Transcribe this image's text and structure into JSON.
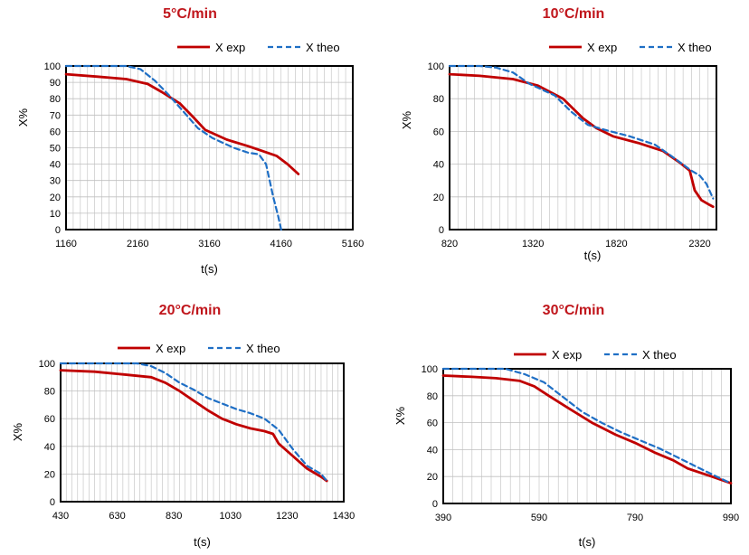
{
  "colors": {
    "exp": "#c00000",
    "theo": "#1f6fc5",
    "title": "#c0161c",
    "grid": "#bfbfbf"
  },
  "chart_data": [
    {
      "type": "line",
      "title": "5°C/min",
      "xlabel": "t(s)",
      "ylabel": "X%",
      "xlim": [
        1160,
        5160
      ],
      "ylim": [
        0,
        100
      ],
      "xticks": [
        "1160",
        "2160",
        "3160",
        "4160",
        "5160"
      ],
      "yticks": [
        "0",
        "10",
        "20",
        "30",
        "40",
        "50",
        "60",
        "70",
        "80",
        "90",
        "100"
      ],
      "grid": true,
      "series": [
        {
          "name": "X exp",
          "style": "solid",
          "x": [
            1160,
            1600,
            2000,
            2300,
            2500,
            2750,
            2950,
            3100,
            3400,
            3700,
            3900,
            4100,
            4250,
            4400
          ],
          "y": [
            95,
            93.5,
            92,
            89,
            84,
            77,
            68,
            61,
            55,
            51,
            48,
            45,
            40,
            34
          ]
        },
        {
          "name": "X theo",
          "style": "dashed",
          "x": [
            1160,
            1600,
            2000,
            2200,
            2400,
            2600,
            2800,
            3000,
            3200,
            3500,
            3700,
            3850,
            3950,
            4000,
            4050,
            4120,
            4160
          ],
          "y": [
            100,
            100,
            100,
            98,
            91,
            82,
            72,
            62,
            56,
            50,
            47,
            46,
            40,
            30,
            20,
            8,
            0
          ]
        }
      ]
    },
    {
      "type": "line",
      "title": "10°C/min",
      "xlabel": "t(s)",
      "ylabel": "X%",
      "xlim": [
        820,
        2420
      ],
      "ylim": [
        0,
        100
      ],
      "xticks": [
        "820",
        "1320",
        "1820",
        "2320"
      ],
      "yticks": [
        "0",
        "20",
        "40",
        "60",
        "80",
        "100"
      ],
      "grid": true,
      "series": [
        {
          "name": "X exp",
          "style": "solid",
          "x": [
            820,
            1000,
            1200,
            1350,
            1500,
            1620,
            1700,
            1800,
            1950,
            2100,
            2200,
            2260,
            2290,
            2330,
            2380,
            2400
          ],
          "y": [
            95,
            94,
            92,
            88,
            80,
            68,
            62,
            57,
            53,
            48,
            41,
            36,
            24,
            18,
            15,
            14
          ]
        },
        {
          "name": "X theo",
          "style": "dashed",
          "x": [
            820,
            1000,
            1100,
            1200,
            1300,
            1450,
            1550,
            1650,
            1750,
            1900,
            2050,
            2150,
            2270,
            2320,
            2360,
            2400
          ],
          "y": [
            100,
            100,
            99,
            96,
            89,
            82,
            72,
            64,
            61,
            57,
            52,
            45,
            36,
            33,
            28,
            19
          ]
        }
      ]
    },
    {
      "type": "line",
      "title": "20°C/min",
      "xlabel": "t(s)",
      "ylabel": "X%",
      "xlim": [
        430,
        1430
      ],
      "ylim": [
        0,
        100
      ],
      "xticks": [
        "430",
        "630",
        "830",
        "1030",
        "1230",
        "1430"
      ],
      "yticks": [
        "0",
        "20",
        "40",
        "60",
        "80",
        "100"
      ],
      "grid": true,
      "series": [
        {
          "name": "X exp",
          "style": "solid",
          "x": [
            430,
            550,
            650,
            750,
            800,
            850,
            900,
            950,
            1000,
            1050,
            1100,
            1150,
            1180,
            1200,
            1250,
            1300,
            1350,
            1370
          ],
          "y": [
            95,
            94,
            92,
            90,
            86,
            80,
            73,
            66,
            60,
            56,
            53,
            51,
            49,
            42,
            33,
            24,
            18,
            15
          ]
        },
        {
          "name": "X theo",
          "style": "dashed",
          "x": [
            430,
            600,
            700,
            750,
            800,
            850,
            900,
            950,
            1000,
            1050,
            1100,
            1150,
            1200,
            1250,
            1300,
            1350,
            1370
          ],
          "y": [
            100,
            100,
            100,
            98,
            93,
            86,
            81,
            75,
            71,
            67,
            64,
            60,
            52,
            38,
            26,
            20,
            15
          ]
        }
      ]
    },
    {
      "type": "line",
      "title": "30°C/min",
      "xlabel": "t(s)",
      "ylabel": "X%",
      "xlim": [
        390,
        990
      ],
      "ylim": [
        0,
        100
      ],
      "xticks": [
        "390",
        "590",
        "790",
        "990"
      ],
      "yticks": [
        "0",
        "20",
        "40",
        "60",
        "80",
        "100"
      ],
      "grid": true,
      "series": [
        {
          "name": "X exp",
          "style": "solid",
          "x": [
            390,
            450,
            500,
            550,
            580,
            610,
            650,
            700,
            750,
            790,
            830,
            870,
            900,
            950,
            990
          ],
          "y": [
            95,
            94,
            93,
            91,
            87,
            80,
            71,
            60,
            51,
            45,
            38,
            32,
            26,
            20,
            15
          ]
        },
        {
          "name": "X theo",
          "style": "dashed",
          "x": [
            390,
            450,
            520,
            560,
            600,
            640,
            680,
            720,
            760,
            800,
            840,
            880,
            920,
            960,
            990
          ],
          "y": [
            100,
            100,
            100,
            96,
            90,
            79,
            68,
            60,
            53,
            47,
            41,
            34,
            27,
            20,
            15
          ]
        }
      ]
    }
  ]
}
